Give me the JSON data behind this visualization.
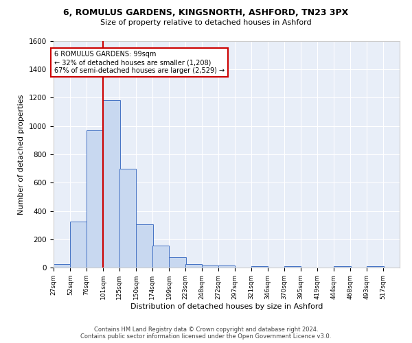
{
  "title1": "6, ROMULUS GARDENS, KINGSNORTH, ASHFORD, TN23 3PX",
  "title2": "Size of property relative to detached houses in Ashford",
  "xlabel": "Distribution of detached houses by size in Ashford",
  "ylabel": "Number of detached properties",
  "property_size": 99,
  "annotation_line1": "6 ROMULUS GARDENS: 99sqm",
  "annotation_line2": "← 32% of detached houses are smaller (1,208)",
  "annotation_line3": "67% of semi-detached houses are larger (2,529) →",
  "bins": [
    27,
    52,
    76,
    101,
    125,
    150,
    174,
    199,
    223,
    248,
    272,
    297,
    321,
    346,
    370,
    395,
    419,
    444,
    468,
    493,
    517
  ],
  "counts": [
    25,
    325,
    970,
    1185,
    700,
    305,
    155,
    75,
    25,
    15,
    15,
    0,
    10,
    0,
    10,
    0,
    0,
    10,
    0,
    10
  ],
  "bar_color": "#c8d8f0",
  "bar_edge_color": "#4472c4",
  "vline_x": 101,
  "vline_color": "#cc0000",
  "box_color": "#cc0000",
  "ylim": [
    0,
    1600
  ],
  "yticks": [
    0,
    200,
    400,
    600,
    800,
    1000,
    1200,
    1400,
    1600
  ],
  "footer_line1": "Contains HM Land Registry data © Crown copyright and database right 2024.",
  "footer_line2": "Contains public sector information licensed under the Open Government Licence v3.0.",
  "bg_color": "#e8eef8"
}
